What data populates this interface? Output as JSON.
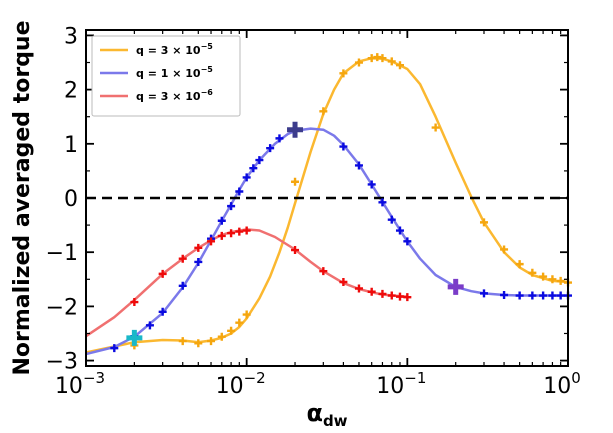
{
  "chart_data": {
    "type": "line",
    "xlabel": "α",
    "xlabel_sub": "dw",
    "ylabel": "Normalized averaged torque",
    "xscale": "log",
    "xlim": [
      0.001,
      1
    ],
    "ylim": [
      -3.1,
      3.1
    ],
    "x_ticks": [
      0.001,
      0.01,
      0.1,
      1
    ],
    "x_tick_labels": [
      {
        "base": "10",
        "exp": "−3"
      },
      {
        "base": "10",
        "exp": "−2"
      },
      {
        "base": "10",
        "exp": "−1"
      },
      {
        "base": "10",
        "exp": "0"
      }
    ],
    "y_ticks": [
      -3,
      -2,
      -1,
      0,
      1,
      2,
      3
    ],
    "y_tick_labels": [
      "−3",
      "−2",
      "−1",
      "0",
      "1",
      "2",
      "3"
    ],
    "zero_line": {
      "y": 0,
      "style": "dashed",
      "color": "#000000"
    },
    "legend_position": "top-left",
    "series": [
      {
        "name": "q = 3 × 10",
        "name_exp": "−5",
        "color": "#fbb830",
        "marker_color": "#f5a60e",
        "curve": [
          [
            0.001,
            -2.85
          ],
          [
            0.0015,
            -2.74
          ],
          [
            0.002,
            -2.66
          ],
          [
            0.003,
            -2.62
          ],
          [
            0.004,
            -2.63
          ],
          [
            0.005,
            -2.66
          ],
          [
            0.006,
            -2.63
          ],
          [
            0.007,
            -2.58
          ],
          [
            0.008,
            -2.5
          ],
          [
            0.009,
            -2.38
          ],
          [
            0.01,
            -2.22
          ],
          [
            0.012,
            -1.85
          ],
          [
            0.014,
            -1.45
          ],
          [
            0.016,
            -1.0
          ],
          [
            0.018,
            -0.55
          ],
          [
            0.02,
            -0.1
          ],
          [
            0.025,
            0.85
          ],
          [
            0.03,
            1.55
          ],
          [
            0.035,
            2.0
          ],
          [
            0.04,
            2.3
          ],
          [
            0.05,
            2.52
          ],
          [
            0.06,
            2.58
          ],
          [
            0.07,
            2.57
          ],
          [
            0.08,
            2.52
          ],
          [
            0.1,
            2.38
          ],
          [
            0.12,
            2.1
          ],
          [
            0.15,
            1.5
          ],
          [
            0.2,
            0.65
          ],
          [
            0.25,
            0.02
          ],
          [
            0.3,
            -0.45
          ],
          [
            0.4,
            -1.0
          ],
          [
            0.5,
            -1.28
          ],
          [
            0.6,
            -1.42
          ],
          [
            0.8,
            -1.53
          ],
          [
            1.0,
            -1.55
          ]
        ],
        "markers": [
          [
            0.002,
            -2.72
          ],
          [
            0.004,
            -2.64
          ],
          [
            0.005,
            -2.68
          ],
          [
            0.006,
            -2.64
          ],
          [
            0.007,
            -2.56
          ],
          [
            0.008,
            -2.45
          ],
          [
            0.009,
            -2.3
          ],
          [
            0.01,
            -2.15
          ],
          [
            0.02,
            0.3
          ],
          [
            0.03,
            1.6
          ],
          [
            0.04,
            2.3
          ],
          [
            0.05,
            2.5
          ],
          [
            0.06,
            2.58
          ],
          [
            0.065,
            2.6
          ],
          [
            0.07,
            2.58
          ],
          [
            0.08,
            2.52
          ],
          [
            0.09,
            2.45
          ],
          [
            0.15,
            1.3
          ],
          [
            0.3,
            -0.45
          ],
          [
            0.4,
            -0.95
          ],
          [
            0.5,
            -1.22
          ],
          [
            0.6,
            -1.38
          ],
          [
            0.7,
            -1.45
          ],
          [
            0.8,
            -1.5
          ],
          [
            0.9,
            -1.53
          ],
          [
            1.0,
            -1.56
          ]
        ]
      },
      {
        "name": "q = 1 × 10",
        "name_exp": "−5",
        "color": "#7b79ea",
        "marker_color": "#0a0ae0",
        "curve": [
          [
            0.001,
            -2.88
          ],
          [
            0.0015,
            -2.75
          ],
          [
            0.002,
            -2.56
          ],
          [
            0.003,
            -2.12
          ],
          [
            0.004,
            -1.65
          ],
          [
            0.005,
            -1.2
          ],
          [
            0.006,
            -0.78
          ],
          [
            0.007,
            -0.42
          ],
          [
            0.008,
            -0.12
          ],
          [
            0.009,
            0.15
          ],
          [
            0.01,
            0.38
          ],
          [
            0.012,
            0.7
          ],
          [
            0.015,
            1.0
          ],
          [
            0.018,
            1.18
          ],
          [
            0.02,
            1.24
          ],
          [
            0.025,
            1.28
          ],
          [
            0.03,
            1.26
          ],
          [
            0.035,
            1.15
          ],
          [
            0.04,
            0.98
          ],
          [
            0.05,
            0.62
          ],
          [
            0.06,
            0.25
          ],
          [
            0.07,
            -0.07
          ],
          [
            0.08,
            -0.35
          ],
          [
            0.1,
            -0.8
          ],
          [
            0.12,
            -1.12
          ],
          [
            0.15,
            -1.42
          ],
          [
            0.2,
            -1.64
          ],
          [
            0.25,
            -1.72
          ],
          [
            0.3,
            -1.76
          ],
          [
            0.4,
            -1.79
          ],
          [
            0.5,
            -1.8
          ],
          [
            1.0,
            -1.8
          ]
        ],
        "markers": [
          [
            0.0015,
            -2.77
          ],
          [
            0.002,
            -2.55
          ],
          [
            0.0025,
            -2.35
          ],
          [
            0.003,
            -2.1
          ],
          [
            0.004,
            -1.62
          ],
          [
            0.005,
            -1.18
          ],
          [
            0.006,
            -0.75
          ],
          [
            0.007,
            -0.42
          ],
          [
            0.008,
            -0.15
          ],
          [
            0.009,
            0.12
          ],
          [
            0.01,
            0.38
          ],
          [
            0.011,
            0.55
          ],
          [
            0.012,
            0.7
          ],
          [
            0.014,
            0.92
          ],
          [
            0.016,
            1.1
          ],
          [
            0.04,
            0.95
          ],
          [
            0.05,
            0.6
          ],
          [
            0.06,
            0.25
          ],
          [
            0.07,
            -0.08
          ],
          [
            0.08,
            -0.4
          ],
          [
            0.09,
            -0.6
          ],
          [
            0.1,
            -0.8
          ],
          [
            0.3,
            -1.76
          ],
          [
            0.4,
            -1.79
          ],
          [
            0.5,
            -1.8
          ],
          [
            0.6,
            -1.8
          ],
          [
            0.7,
            -1.8
          ],
          [
            0.8,
            -1.8
          ],
          [
            0.9,
            -1.8
          ],
          [
            1.0,
            -1.8
          ]
        ]
      },
      {
        "name": "q = 3 × 10",
        "name_exp": "−6",
        "color": "#f07070",
        "marker_color": "#ee0a0a",
        "curve": [
          [
            0.001,
            -2.55
          ],
          [
            0.0015,
            -2.2
          ],
          [
            0.002,
            -1.88
          ],
          [
            0.003,
            -1.4
          ],
          [
            0.004,
            -1.12
          ],
          [
            0.005,
            -0.92
          ],
          [
            0.006,
            -0.78
          ],
          [
            0.007,
            -0.68
          ],
          [
            0.008,
            -0.63
          ],
          [
            0.01,
            -0.58
          ],
          [
            0.012,
            -0.6
          ],
          [
            0.015,
            -0.72
          ],
          [
            0.02,
            -0.95
          ],
          [
            0.025,
            -1.18
          ],
          [
            0.03,
            -1.35
          ],
          [
            0.04,
            -1.57
          ],
          [
            0.05,
            -1.68
          ],
          [
            0.06,
            -1.74
          ],
          [
            0.07,
            -1.78
          ],
          [
            0.08,
            -1.8
          ],
          [
            0.1,
            -1.82
          ]
        ],
        "markers": [
          [
            0.002,
            -1.92
          ],
          [
            0.003,
            -1.4
          ],
          [
            0.004,
            -1.12
          ],
          [
            0.005,
            -0.92
          ],
          [
            0.006,
            -0.8
          ],
          [
            0.007,
            -0.7
          ],
          [
            0.008,
            -0.65
          ],
          [
            0.009,
            -0.62
          ],
          [
            0.01,
            -0.6
          ],
          [
            0.02,
            -0.96
          ],
          [
            0.03,
            -1.35
          ],
          [
            0.04,
            -1.55
          ],
          [
            0.05,
            -1.67
          ],
          [
            0.06,
            -1.73
          ],
          [
            0.07,
            -1.77
          ],
          [
            0.08,
            -1.8
          ],
          [
            0.09,
            -1.82
          ],
          [
            0.1,
            -1.83
          ]
        ]
      }
    ],
    "highlight_markers": [
      {
        "x": 0.002,
        "y": -2.58,
        "color": "#1ab8c8"
      },
      {
        "x": 0.02,
        "y": 1.26,
        "color": "#3c3c8c"
      },
      {
        "x": 0.2,
        "y": -1.64,
        "color": "#7a3cc8"
      }
    ]
  }
}
